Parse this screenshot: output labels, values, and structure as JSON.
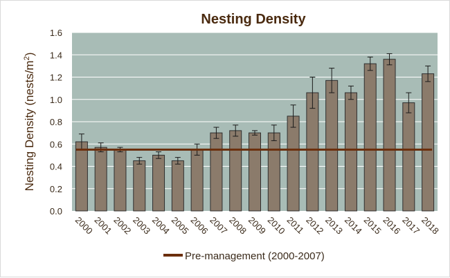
{
  "chart_data": {
    "type": "bar",
    "title": "Nesting Density",
    "ylabel_main": "Nesting Density (nests/m",
    "ylabel_sup": "2",
    "ylabel_end": ")",
    "xlabel": "",
    "categories": [
      "2000",
      "2001",
      "2002",
      "2003",
      "2004",
      "2005",
      "2006",
      "2007",
      "2008",
      "2009",
      "2010",
      "2011",
      "2012",
      "2013",
      "2014",
      "2015",
      "2016",
      "2017",
      "2018"
    ],
    "values": [
      0.62,
      0.57,
      0.55,
      0.45,
      0.5,
      0.45,
      0.55,
      0.7,
      0.72,
      0.7,
      0.7,
      0.85,
      1.06,
      1.17,
      1.06,
      1.32,
      1.36,
      0.97,
      1.23
    ],
    "errors": [
      0.07,
      0.04,
      0.02,
      0.03,
      0.03,
      0.03,
      0.05,
      0.05,
      0.05,
      0.02,
      0.07,
      0.1,
      0.14,
      0.11,
      0.06,
      0.06,
      0.05,
      0.09,
      0.07
    ],
    "yticks": [
      "0.0",
      "0.2",
      "0.4",
      "0.6",
      "0.8",
      "1.0",
      "1.2",
      "1.4",
      "1.6"
    ],
    "ylim": [
      0,
      1.6
    ],
    "grid": true,
    "reference_line": {
      "name": "Pre-management (2000-2007)",
      "value": 0.55,
      "color": "#6b2e0c"
    },
    "legend_position": "bottom",
    "colors": {
      "bar": "#8b7b6b",
      "bar_edge": "#2e2e2e",
      "plot_bg": "#a8bcb6",
      "grid": "#ffffff",
      "title": "#4a2a0f"
    }
  }
}
